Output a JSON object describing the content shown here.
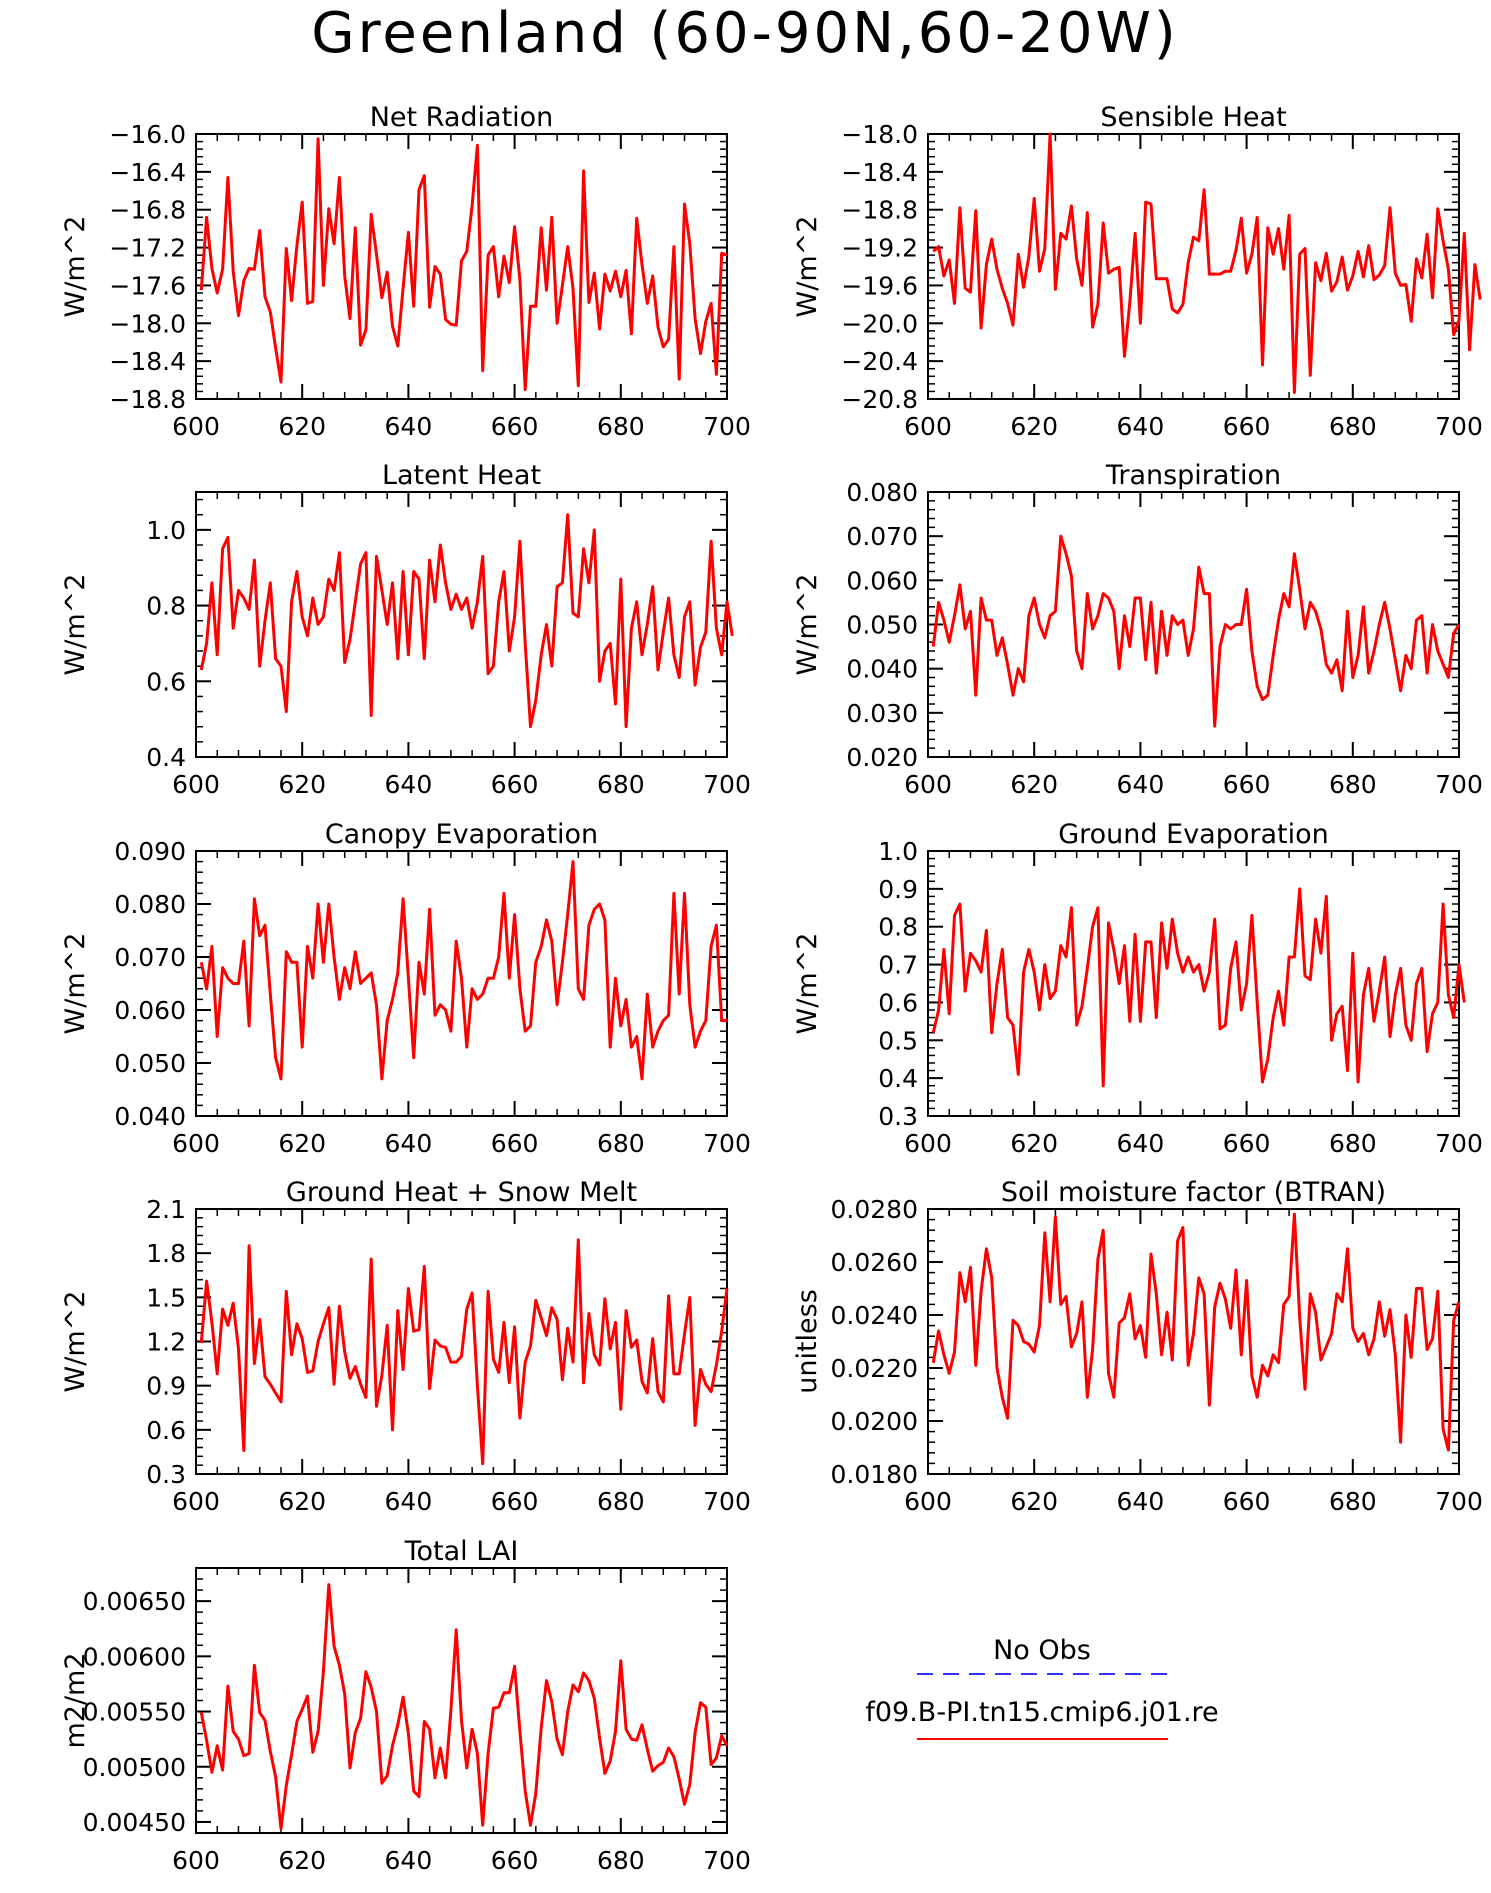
{
  "figure_title": "Greenland (60-90N,60-20W)",
  "legend": {
    "items": [
      {
        "label": "No Obs",
        "color": "#3333ff",
        "dash": true
      },
      {
        "label": "f09.B-PI.tn15.cmip6.j01.re",
        "color": "#ff0000",
        "dash": false
      }
    ]
  },
  "series_color": "#ff0000",
  "chart_data": [
    {
      "type": "line",
      "title": "Net Radiation",
      "ylabel": "W/m^2",
      "xlim": [
        600,
        700
      ],
      "ylim": [
        -18.8,
        -16.0
      ],
      "xticks": [
        600,
        620,
        640,
        660,
        680,
        700
      ],
      "yticks": [
        -18.8,
        -18.4,
        -18.0,
        -17.6,
        -17.2,
        -16.8,
        -16.4,
        -16.0
      ],
      "ytick_labels": [
        "-18.8",
        "-18.4",
        "-18.0",
        "-17.6",
        "-17.2",
        "-16.8",
        "-16.4",
        "-16.0"
      ],
      "x_start": 601,
      "values": [
        -17.65,
        -16.88,
        -17.42,
        -17.68,
        -17.43,
        -16.46,
        -17.45,
        -17.92,
        -17.55,
        -17.42,
        -17.43,
        -17.02,
        -17.72,
        -17.88,
        -18.26,
        -18.62,
        -17.21,
        -17.76,
        -17.18,
        -16.72,
        -17.79,
        -17.77,
        -16.05,
        -17.6,
        -16.79,
        -17.16,
        -16.46,
        -17.5,
        -17.95,
        -16.99,
        -18.23,
        -18.07,
        -16.85,
        -17.27,
        -17.73,
        -17.46,
        -18.03,
        -18.24,
        -17.63,
        -17.04,
        -17.82,
        -16.59,
        -16.44,
        -17.83,
        -17.4,
        -17.48,
        -17.96,
        -18.01,
        -18.02,
        -17.34,
        -17.24,
        -16.76,
        -16.12,
        -18.5,
        -17.28,
        -17.19,
        -17.72,
        -17.29,
        -17.57,
        -16.98,
        -17.54,
        -18.7,
        -17.82,
        -17.82,
        -16.99,
        -17.65,
        -16.88,
        -18.0,
        -17.6,
        -17.19,
        -17.63,
        -18.66,
        -16.39,
        -17.78,
        -17.47,
        -18.06,
        -17.48,
        -17.66,
        -17.45,
        -17.72,
        -17.44,
        -18.11,
        -16.89,
        -17.38,
        -17.79,
        -17.5,
        -18.04,
        -18.25,
        -18.17,
        -17.19,
        -18.59,
        -16.74,
        -17.16,
        -17.95,
        -18.32,
        -17.98,
        -17.79,
        -18.54,
        -17.26,
        -17.28
      ]
    },
    {
      "type": "line",
      "title": "Sensible Heat",
      "ylabel": "W/m^2",
      "xlim": [
        600,
        700
      ],
      "ylim": [
        -20.8,
        -18.0
      ],
      "xticks": [
        600,
        620,
        640,
        660,
        680,
        700
      ],
      "yticks": [
        -20.8,
        -20.4,
        -20.0,
        -19.6,
        -19.2,
        -18.8,
        -18.4,
        -18.0
      ],
      "ytick_labels": [
        "-20.8",
        "-20.4",
        "-20.0",
        "-19.6",
        "-19.2",
        "-18.8",
        "-18.4",
        "-18.0"
      ],
      "x_start": 601,
      "values": [
        -19.24,
        -19.19,
        -19.5,
        -19.33,
        -19.79,
        -18.78,
        -19.63,
        -19.67,
        -18.81,
        -20.05,
        -19.38,
        -19.11,
        -19.43,
        -19.63,
        -19.79,
        -20.02,
        -19.27,
        -19.62,
        -19.29,
        -18.68,
        -19.45,
        -19.21,
        -18.0,
        -19.64,
        -19.05,
        -19.11,
        -18.76,
        -19.32,
        -19.6,
        -18.83,
        -20.04,
        -19.8,
        -18.94,
        -19.47,
        -19.43,
        -19.41,
        -20.35,
        -19.78,
        -19.05,
        -20.0,
        -18.72,
        -18.74,
        -19.53,
        -19.53,
        -19.53,
        -19.85,
        -19.89,
        -19.8,
        -19.36,
        -19.09,
        -19.13,
        -18.59,
        -19.48,
        -19.48,
        -19.48,
        -19.45,
        -19.45,
        -19.23,
        -18.89,
        -19.47,
        -19.27,
        -18.88,
        -20.44,
        -18.99,
        -19.27,
        -19.0,
        -19.43,
        -18.86,
        -20.73,
        -19.27,
        -19.21,
        -20.55,
        -19.36,
        -19.55,
        -19.26,
        -19.66,
        -19.56,
        -19.3,
        -19.65,
        -19.5,
        -19.24,
        -19.51,
        -19.18,
        -19.54,
        -19.49,
        -19.39,
        -18.78,
        -19.47,
        -19.6,
        -19.59,
        -19.98,
        -19.32,
        -19.52,
        -19.06,
        -19.73,
        -18.79,
        -19.13,
        -19.43,
        -20.12,
        -19.97,
        -19.05,
        -20.28,
        -19.38,
        -19.75
      ]
    },
    {
      "type": "line",
      "title": "Latent Heat",
      "ylabel": "W/m^2",
      "xlim": [
        600,
        700
      ],
      "ylim": [
        0.4,
        1.1
      ],
      "xticks": [
        600,
        620,
        640,
        660,
        680,
        700
      ],
      "yticks": [
        0.4,
        0.6,
        0.8,
        1.0
      ],
      "ytick_labels": [
        "0.4",
        "0.6",
        "0.8",
        "1.0"
      ],
      "x_start": 601,
      "values": [
        0.63,
        0.7,
        0.86,
        0.67,
        0.95,
        0.98,
        0.74,
        0.84,
        0.82,
        0.79,
        0.92,
        0.64,
        0.76,
        0.86,
        0.66,
        0.64,
        0.52,
        0.81,
        0.89,
        0.77,
        0.72,
        0.82,
        0.75,
        0.77,
        0.87,
        0.84,
        0.94,
        0.65,
        0.71,
        0.81,
        0.91,
        0.94,
        0.51,
        0.93,
        0.84,
        0.75,
        0.86,
        0.66,
        0.89,
        0.67,
        0.89,
        0.87,
        0.66,
        0.92,
        0.81,
        0.96,
        0.86,
        0.79,
        0.83,
        0.79,
        0.82,
        0.74,
        0.81,
        0.93,
        0.62,
        0.64,
        0.81,
        0.89,
        0.68,
        0.77,
        0.97,
        0.7,
        0.48,
        0.55,
        0.67,
        0.75,
        0.64,
        0.85,
        0.86,
        1.04,
        0.78,
        0.77,
        0.95,
        0.86,
        1.0,
        0.6,
        0.68,
        0.7,
        0.54,
        0.87,
        0.48,
        0.74,
        0.81,
        0.67,
        0.75,
        0.85,
        0.63,
        0.73,
        0.82,
        0.67,
        0.61,
        0.77,
        0.81,
        0.59,
        0.69,
        0.73,
        0.97,
        0.74,
        0.67,
        0.81,
        0.72
      ]
    },
    {
      "type": "line",
      "title": "Transpiration",
      "ylabel": "W/m^2",
      "xlim": [
        600,
        700
      ],
      "ylim": [
        0.02,
        0.08
      ],
      "xticks": [
        600,
        620,
        640,
        660,
        680,
        700
      ],
      "yticks": [
        0.02,
        0.03,
        0.04,
        0.05,
        0.06,
        0.07,
        0.08
      ],
      "ytick_labels": [
        "0.020",
        "0.030",
        "0.040",
        "0.050",
        "0.060",
        "0.070",
        "0.080"
      ],
      "x_start": 601,
      "values": [
        0.045,
        0.055,
        0.051,
        0.046,
        0.052,
        0.059,
        0.049,
        0.053,
        0.034,
        0.056,
        0.051,
        0.051,
        0.043,
        0.047,
        0.041,
        0.034,
        0.04,
        0.037,
        0.052,
        0.056,
        0.05,
        0.047,
        0.052,
        0.053,
        0.07,
        0.066,
        0.061,
        0.044,
        0.04,
        0.057,
        0.049,
        0.052,
        0.057,
        0.056,
        0.053,
        0.04,
        0.052,
        0.045,
        0.056,
        0.056,
        0.042,
        0.055,
        0.039,
        0.053,
        0.043,
        0.052,
        0.05,
        0.051,
        0.043,
        0.049,
        0.063,
        0.057,
        0.057,
        0.027,
        0.045,
        0.05,
        0.049,
        0.05,
        0.05,
        0.058,
        0.044,
        0.036,
        0.033,
        0.034,
        0.043,
        0.051,
        0.057,
        0.054,
        0.066,
        0.058,
        0.049,
        0.055,
        0.053,
        0.049,
        0.041,
        0.039,
        0.042,
        0.035,
        0.053,
        0.038,
        0.043,
        0.054,
        0.039,
        0.044,
        0.05,
        0.055,
        0.049,
        0.042,
        0.035,
        0.043,
        0.04,
        0.051,
        0.052,
        0.039,
        0.05,
        0.044,
        0.041,
        0.038,
        0.048,
        0.05
      ]
    },
    {
      "type": "line",
      "title": "Canopy Evaporation",
      "ylabel": "W/m^2",
      "xlim": [
        600,
        700
      ],
      "ylim": [
        0.04,
        0.09
      ],
      "xticks": [
        600,
        620,
        640,
        660,
        680,
        700
      ],
      "yticks": [
        0.04,
        0.05,
        0.06,
        0.07,
        0.08,
        0.09
      ],
      "ytick_labels": [
        "0.040",
        "0.050",
        "0.060",
        "0.070",
        "0.080",
        "0.090"
      ],
      "x_start": 601,
      "values": [
        0.069,
        0.064,
        0.072,
        0.055,
        0.068,
        0.066,
        0.065,
        0.065,
        0.073,
        0.057,
        0.081,
        0.074,
        0.076,
        0.063,
        0.051,
        0.047,
        0.071,
        0.069,
        0.069,
        0.053,
        0.072,
        0.066,
        0.08,
        0.069,
        0.08,
        0.07,
        0.062,
        0.068,
        0.064,
        0.071,
        0.065,
        0.066,
        0.067,
        0.061,
        0.047,
        0.058,
        0.062,
        0.067,
        0.081,
        0.066,
        0.051,
        0.069,
        0.063,
        0.079,
        0.059,
        0.061,
        0.06,
        0.056,
        0.073,
        0.066,
        0.053,
        0.064,
        0.062,
        0.063,
        0.066,
        0.066,
        0.07,
        0.082,
        0.066,
        0.078,
        0.064,
        0.056,
        0.057,
        0.069,
        0.072,
        0.077,
        0.073,
        0.061,
        0.069,
        0.078,
        0.088,
        0.064,
        0.062,
        0.076,
        0.079,
        0.08,
        0.077,
        0.053,
        0.066,
        0.057,
        0.062,
        0.053,
        0.055,
        0.047,
        0.063,
        0.053,
        0.056,
        0.058,
        0.059,
        0.082,
        0.063,
        0.082,
        0.061,
        0.053,
        0.056,
        0.058,
        0.072,
        0.076,
        0.058,
        0.058
      ]
    },
    {
      "type": "line",
      "title": "Ground Evaporation",
      "ylabel": "W/m^2",
      "xlim": [
        600,
        700
      ],
      "ylim": [
        0.3,
        1.0
      ],
      "xticks": [
        600,
        620,
        640,
        660,
        680,
        700
      ],
      "yticks": [
        0.3,
        0.4,
        0.5,
        0.6,
        0.7,
        0.8,
        0.9,
        1.0
      ],
      "ytick_labels": [
        "0.3",
        "0.4",
        "0.5",
        "0.6",
        "0.7",
        "0.8",
        "0.9",
        "1.0"
      ],
      "x_start": 601,
      "values": [
        0.52,
        0.58,
        0.74,
        0.57,
        0.83,
        0.86,
        0.63,
        0.73,
        0.71,
        0.68,
        0.79,
        0.52,
        0.65,
        0.74,
        0.56,
        0.54,
        0.41,
        0.68,
        0.74,
        0.68,
        0.58,
        0.7,
        0.61,
        0.63,
        0.75,
        0.72,
        0.85,
        0.54,
        0.59,
        0.69,
        0.8,
        0.85,
        0.38,
        0.81,
        0.74,
        0.65,
        0.75,
        0.55,
        0.78,
        0.55,
        0.76,
        0.76,
        0.56,
        0.81,
        0.69,
        0.82,
        0.73,
        0.68,
        0.72,
        0.68,
        0.7,
        0.63,
        0.68,
        0.82,
        0.53,
        0.54,
        0.69,
        0.76,
        0.58,
        0.65,
        0.83,
        0.6,
        0.39,
        0.45,
        0.56,
        0.63,
        0.54,
        0.72,
        0.72,
        0.9,
        0.67,
        0.66,
        0.82,
        0.73,
        0.88,
        0.5,
        0.57,
        0.59,
        0.42,
        0.73,
        0.39,
        0.62,
        0.69,
        0.55,
        0.63,
        0.72,
        0.51,
        0.62,
        0.69,
        0.54,
        0.5,
        0.65,
        0.69,
        0.47,
        0.57,
        0.6,
        0.86,
        0.62,
        0.56,
        0.7,
        0.6
      ]
    },
    {
      "type": "line",
      "title": "Ground Heat + Snow Melt",
      "ylabel": "W/m^2",
      "xlim": [
        600,
        700
      ],
      "ylim": [
        0.3,
        2.1
      ],
      "xticks": [
        600,
        620,
        640,
        660,
        680,
        700
      ],
      "yticks": [
        0.3,
        0.6,
        0.9,
        1.2,
        1.5,
        1.8,
        2.1
      ],
      "ytick_labels": [
        "0.3",
        "0.6",
        "0.9",
        "1.2",
        "1.5",
        "1.8",
        "2.1"
      ],
      "x_start": 601,
      "values": [
        1.19,
        1.61,
        1.33,
        0.98,
        1.42,
        1.31,
        1.46,
        1.15,
        0.46,
        1.85,
        1.05,
        1.35,
        0.96,
        0.91,
        0.85,
        0.79,
        1.54,
        1.11,
        1.32,
        1.22,
        0.99,
        1.0,
        1.2,
        1.32,
        1.43,
        0.91,
        1.44,
        1.13,
        0.95,
        1.03,
        0.91,
        0.82,
        1.76,
        0.76,
        0.97,
        1.31,
        0.6,
        1.41,
        1.01,
        1.56,
        1.27,
        1.28,
        1.71,
        0.88,
        1.21,
        1.17,
        1.16,
        1.06,
        1.06,
        1.1,
        1.42,
        1.53,
        0.9,
        0.37,
        1.54,
        1.08,
        0.99,
        1.33,
        0.92,
        1.3,
        0.68,
        1.06,
        1.17,
        1.48,
        1.36,
        1.24,
        1.43,
        1.35,
        0.94,
        1.29,
        1.06,
        1.89,
        0.92,
        1.39,
        1.11,
        1.04,
        1.49,
        1.15,
        1.33,
        0.74,
        1.41,
        1.16,
        1.21,
        0.93,
        0.85,
        1.22,
        0.86,
        0.79,
        1.51,
        0.98,
        0.98,
        1.25,
        1.5,
        0.63,
        1.01,
        0.91,
        0.86,
        1.04,
        1.27,
        1.56
      ]
    },
    {
      "type": "line",
      "title": "Soil moisture factor (BTRAN)",
      "ylabel": "unitless",
      "xlim": [
        600,
        700
      ],
      "ylim": [
        0.018,
        0.028
      ],
      "xticks": [
        600,
        620,
        640,
        660,
        680,
        700
      ],
      "yticks": [
        0.018,
        0.02,
        0.022,
        0.024,
        0.026,
        0.028
      ],
      "ytick_labels": [
        "0.0180",
        "0.0200",
        "0.0220",
        "0.0240",
        "0.0260",
        "0.0280"
      ],
      "x_start": 601,
      "values": [
        0.0222,
        0.0234,
        0.0225,
        0.0218,
        0.0226,
        0.0256,
        0.0245,
        0.0258,
        0.0221,
        0.0249,
        0.0265,
        0.0254,
        0.022,
        0.0209,
        0.0201,
        0.0238,
        0.0236,
        0.023,
        0.0229,
        0.0226,
        0.0236,
        0.0271,
        0.0245,
        0.0277,
        0.0244,
        0.0247,
        0.0228,
        0.0233,
        0.0245,
        0.0209,
        0.0227,
        0.0261,
        0.0272,
        0.0218,
        0.0209,
        0.0237,
        0.0239,
        0.0248,
        0.0231,
        0.0236,
        0.0224,
        0.0263,
        0.0248,
        0.0225,
        0.0241,
        0.0223,
        0.0268,
        0.0273,
        0.0221,
        0.0233,
        0.0254,
        0.0248,
        0.0206,
        0.0243,
        0.0252,
        0.0246,
        0.0235,
        0.0257,
        0.0225,
        0.0253,
        0.0217,
        0.0209,
        0.0221,
        0.0217,
        0.0225,
        0.0222,
        0.0244,
        0.0247,
        0.0278,
        0.0239,
        0.0212,
        0.0248,
        0.0241,
        0.0223,
        0.0228,
        0.0233,
        0.0248,
        0.0245,
        0.0265,
        0.0235,
        0.023,
        0.0233,
        0.0225,
        0.0231,
        0.0245,
        0.0232,
        0.0242,
        0.0225,
        0.0192,
        0.024,
        0.0224,
        0.025,
        0.025,
        0.0227,
        0.0231,
        0.0249,
        0.0197,
        0.0189,
        0.0238,
        0.0245
      ]
    },
    {
      "type": "line",
      "title": "Total LAI",
      "ylabel": "m2/m2",
      "xlim": [
        600,
        700
      ],
      "ylim": [
        0.0044,
        0.0068
      ],
      "xticks": [
        600,
        620,
        640,
        660,
        680,
        700
      ],
      "yticks": [
        0.0045,
        0.005,
        0.0055,
        0.006,
        0.0065
      ],
      "ytick_labels": [
        "0.00450",
        "0.00500",
        "0.00550",
        "0.00600",
        "0.00650"
      ],
      "x_start": 601,
      "values": [
        0.00549,
        0.00524,
        0.00495,
        0.00519,
        0.00497,
        0.00573,
        0.00532,
        0.00525,
        0.0051,
        0.00512,
        0.00592,
        0.00549,
        0.00542,
        0.00514,
        0.00491,
        0.00444,
        0.00483,
        0.00511,
        0.00541,
        0.00552,
        0.00564,
        0.00513,
        0.00532,
        0.00586,
        0.00665,
        0.00609,
        0.00592,
        0.00566,
        0.00499,
        0.00531,
        0.00544,
        0.00586,
        0.00572,
        0.0055,
        0.00485,
        0.00492,
        0.00519,
        0.00538,
        0.00563,
        0.0053,
        0.00478,
        0.00473,
        0.00541,
        0.00534,
        0.0049,
        0.00517,
        0.0049,
        0.00551,
        0.00624,
        0.00542,
        0.00499,
        0.00534,
        0.00512,
        0.00447,
        0.00512,
        0.00553,
        0.00554,
        0.00567,
        0.00567,
        0.00591,
        0.00532,
        0.00478,
        0.00447,
        0.00476,
        0.00535,
        0.00578,
        0.00559,
        0.00525,
        0.00511,
        0.0055,
        0.00574,
        0.00568,
        0.00585,
        0.00578,
        0.00562,
        0.00526,
        0.00494,
        0.00505,
        0.00532,
        0.00596,
        0.00534,
        0.00525,
        0.00524,
        0.00538,
        0.00516,
        0.00496,
        0.00501,
        0.00504,
        0.00517,
        0.00509,
        0.00489,
        0.00466,
        0.00484,
        0.00531,
        0.00558,
        0.00554,
        0.00502,
        0.00508,
        0.00528,
        0.00519
      ]
    }
  ]
}
